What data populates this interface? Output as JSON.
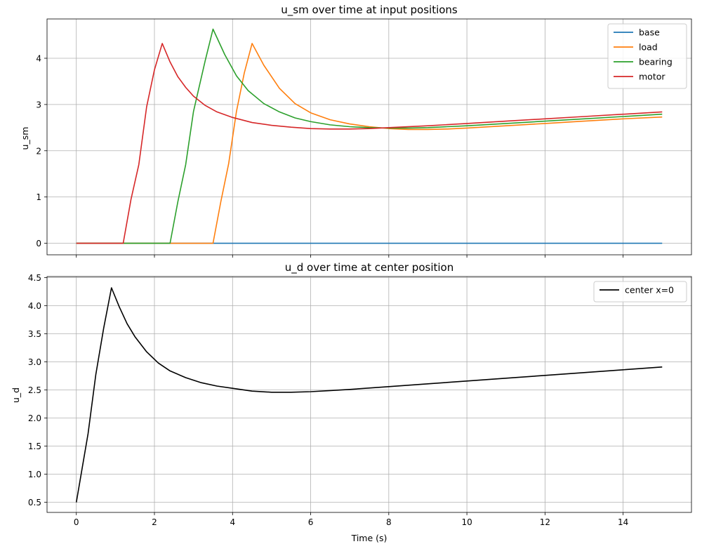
{
  "chart_data": [
    {
      "type": "line",
      "title": "u_sm over time at input positions",
      "xlabel": "",
      "ylabel": "u_sm",
      "xlim": [
        -0.75,
        15.75
      ],
      "ylim": [
        -0.25,
        4.85
      ],
      "xticks": [
        0,
        2,
        4,
        6,
        8,
        10,
        12,
        14
      ],
      "xtick_labels_visible": false,
      "yticks": [
        0,
        1,
        2,
        3,
        4
      ],
      "grid": true,
      "legend": "top-right",
      "series": [
        {
          "name": "base",
          "color": "#1f77b4",
          "x": [
            0,
            15
          ],
          "y": [
            0,
            0
          ]
        },
        {
          "name": "load",
          "color": "#ff7f0e",
          "x": [
            0,
            3.5,
            3.7,
            3.9,
            4.1,
            4.3,
            4.5,
            4.8,
            5.2,
            5.6,
            6.0,
            6.5,
            7.0,
            7.5,
            8.0,
            8.5,
            9.0,
            9.5,
            10.0,
            11.0,
            12.0,
            13.0,
            14.0,
            15.0
          ],
          "y": [
            0,
            0,
            0.9,
            1.72,
            2.85,
            3.68,
            4.32,
            3.85,
            3.35,
            3.02,
            2.82,
            2.67,
            2.58,
            2.52,
            2.48,
            2.46,
            2.46,
            2.47,
            2.49,
            2.54,
            2.59,
            2.64,
            2.69,
            2.73
          ]
        },
        {
          "name": "bearing",
          "color": "#2ca02c",
          "x": [
            0,
            2.4,
            2.6,
            2.8,
            3.0,
            3.3,
            3.5,
            3.8,
            4.1,
            4.4,
            4.8,
            5.2,
            5.6,
            6.0,
            6.5,
            7.0,
            7.5,
            8.0,
            8.5,
            9.0,
            9.5,
            10.0,
            11.0,
            12.0,
            13.0,
            14.0,
            15.0
          ],
          "y": [
            0,
            0,
            0.9,
            1.7,
            2.85,
            3.95,
            4.63,
            4.08,
            3.62,
            3.3,
            3.02,
            2.84,
            2.71,
            2.63,
            2.56,
            2.52,
            2.5,
            2.49,
            2.49,
            2.5,
            2.52,
            2.54,
            2.59,
            2.64,
            2.69,
            2.74,
            2.79
          ]
        },
        {
          "name": "motor",
          "color": "#d62728",
          "x": [
            0,
            1.2,
            1.4,
            1.6,
            1.8,
            2.0,
            2.2,
            2.4,
            2.6,
            2.8,
            3.0,
            3.3,
            3.6,
            4.0,
            4.5,
            5.0,
            5.5,
            6.0,
            6.5,
            7.0,
            7.5,
            8.0,
            9.0,
            10.0,
            11.0,
            12.0,
            13.0,
            14.0,
            15.0
          ],
          "y": [
            0,
            0,
            0.95,
            1.7,
            2.95,
            3.75,
            4.32,
            3.92,
            3.6,
            3.37,
            3.18,
            2.98,
            2.84,
            2.72,
            2.61,
            2.55,
            2.51,
            2.48,
            2.47,
            2.47,
            2.48,
            2.5,
            2.54,
            2.59,
            2.64,
            2.69,
            2.74,
            2.79,
            2.84
          ]
        }
      ]
    },
    {
      "type": "line",
      "title": "u_d over time at center position",
      "xlabel": "Time (s)",
      "ylabel": "u_d",
      "xlim": [
        -0.75,
        15.75
      ],
      "ylim": [
        0.32,
        4.52
      ],
      "xticks": [
        0,
        2,
        4,
        6,
        8,
        10,
        12,
        14
      ],
      "yticks": [
        0.5,
        1.0,
        1.5,
        2.0,
        2.5,
        3.0,
        3.5,
        4.0,
        4.5
      ],
      "ytick_labels": [
        "0.5",
        "1.0",
        "1.5",
        "2.0",
        "2.5",
        "3.0",
        "3.5",
        "4.0",
        "4.5"
      ],
      "grid": true,
      "legend": "top-right",
      "series": [
        {
          "name": "center x=0",
          "color": "#000000",
          "x": [
            0,
            0.3,
            0.5,
            0.7,
            0.9,
            1.1,
            1.3,
            1.5,
            1.8,
            2.1,
            2.4,
            2.8,
            3.2,
            3.6,
            4.0,
            4.5,
            5.0,
            5.5,
            6.0,
            6.5,
            7.0,
            8.0,
            9.0,
            10.0,
            11.0,
            12.0,
            13.0,
            14.0,
            15.0
          ],
          "y": [
            0.5,
            1.72,
            2.78,
            3.6,
            4.32,
            3.98,
            3.68,
            3.45,
            3.18,
            2.98,
            2.84,
            2.72,
            2.63,
            2.57,
            2.53,
            2.48,
            2.46,
            2.46,
            2.47,
            2.49,
            2.51,
            2.56,
            2.61,
            2.66,
            2.71,
            2.76,
            2.81,
            2.86,
            2.91
          ]
        }
      ]
    }
  ]
}
